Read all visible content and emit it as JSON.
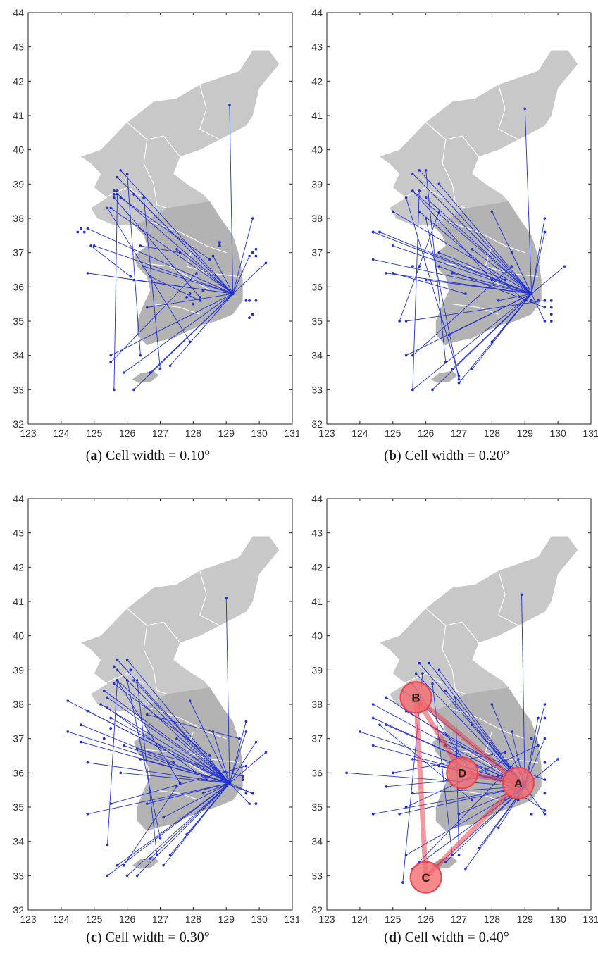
{
  "figure": {
    "panels": [
      {
        "letter": "a",
        "caption_text": " Cell width = 0.10°"
      },
      {
        "letter": "b",
        "caption_text": " Cell width = 0.20°"
      },
      {
        "letter": "c",
        "caption_text": " Cell width = 0.30°"
      },
      {
        "letter": "d",
        "caption_text": " Cell width = 0.40°"
      }
    ]
  },
  "colors": {
    "links": "#1f2fd6",
    "land": "#c8c8c8",
    "land_south": "#b3b3b3",
    "boundary": "#ffffff",
    "hub": "#e8434f",
    "hub_fill": "#f46b6f"
  },
  "chart_data": [
    {
      "type": "scatter",
      "title": "",
      "xlabel": "",
      "ylabel": "",
      "xlim": [
        123,
        131
      ],
      "ylim": [
        32,
        44
      ],
      "x_ticks": [
        123,
        124,
        125,
        126,
        127,
        128,
        129,
        130,
        131
      ],
      "y_ticks": [
        32,
        33,
        34,
        35,
        36,
        37,
        38,
        39,
        40,
        41,
        42,
        43,
        44
      ],
      "grid": false,
      "hub": [
        129.2,
        35.8
      ],
      "hub_links_from": [
        [
          129.1,
          41.3
        ],
        [
          125.8,
          39.4
        ],
        [
          125.7,
          39.2
        ],
        [
          125.6,
          38.8
        ],
        [
          126.2,
          38.7
        ],
        [
          125.5,
          38.3
        ],
        [
          124.8,
          37.7
        ],
        [
          125.0,
          37.2
        ],
        [
          124.8,
          36.4
        ],
        [
          126.2,
          36.2
        ],
        [
          126.5,
          36.6
        ],
        [
          127.5,
          37.1
        ],
        [
          128.6,
          36.9
        ],
        [
          130.2,
          36.7
        ],
        [
          129.8,
          38.0
        ],
        [
          129.7,
          36.9
        ],
        [
          125.5,
          34.0
        ],
        [
          125.9,
          33.5
        ],
        [
          126.2,
          33.0
        ],
        [
          126.7,
          33.5
        ],
        [
          127.3,
          33.7
        ],
        [
          126.6,
          35.4
        ]
      ],
      "other_links": [
        [
          [
            125.6,
            33.0
          ],
          [
            125.7,
            38.7
          ]
        ],
        [
          [
            125.4,
            38.3
          ],
          [
            127.9,
            34.4
          ]
        ],
        [
          [
            126.5,
            38.6
          ],
          [
            127.0,
            33.6
          ]
        ],
        [
          [
            125.6,
            38.6
          ],
          [
            128.2,
            35.7
          ]
        ],
        [
          [
            124.9,
            37.2
          ],
          [
            126.1,
            36.3
          ]
        ],
        [
          [
            126.0,
            39.3
          ],
          [
            126.4,
            34.0
          ]
        ],
        [
          [
            125.5,
            33.8
          ],
          [
            128.1,
            36.4
          ]
        ],
        [
          [
            125.8,
            38.6
          ],
          [
            128.5,
            36.8
          ]
        ],
        [
          [
            126.4,
            37.2
          ],
          [
            127.6,
            37.0
          ]
        ],
        [
          [
            126.7,
            36.3
          ],
          [
            128.2,
            35.6
          ]
        ]
      ],
      "points": [
        [
          124.5,
          37.6
        ],
        [
          124.6,
          37.7
        ],
        [
          124.7,
          37.6
        ],
        [
          125.6,
          38.8
        ],
        [
          125.7,
          38.8
        ],
        [
          125.6,
          38.7
        ],
        [
          128.8,
          37.3
        ],
        [
          128.8,
          37.2
        ],
        [
          129.8,
          37.0
        ],
        [
          129.9,
          37.1
        ],
        [
          129.9,
          36.9
        ],
        [
          129.6,
          35.6
        ],
        [
          129.7,
          35.6
        ],
        [
          129.8,
          35.2
        ],
        [
          129.7,
          35.1
        ],
        [
          129.9,
          35.6
        ],
        [
          128.0,
          35.5
        ],
        [
          127.9,
          35.8
        ],
        [
          128.3,
          35.9
        ],
        [
          127.8,
          35.7
        ]
      ]
    },
    {
      "type": "scatter",
      "title": "",
      "xlabel": "",
      "ylabel": "",
      "xlim": [
        123,
        131
      ],
      "ylim": [
        32,
        44
      ],
      "x_ticks": [
        123,
        124,
        125,
        126,
        127,
        128,
        129,
        130,
        131
      ],
      "y_ticks": [
        32,
        33,
        34,
        35,
        36,
        37,
        38,
        39,
        40,
        41,
        42,
        43,
        44
      ],
      "grid": false,
      "hub": [
        129.2,
        35.8
      ],
      "hub_links_from": [
        [
          129.0,
          41.2
        ],
        [
          125.8,
          39.4
        ],
        [
          125.6,
          39.3
        ],
        [
          125.6,
          38.8
        ],
        [
          126.4,
          39.0
        ],
        [
          126.0,
          38.6
        ],
        [
          125.0,
          38.2
        ],
        [
          124.4,
          37.6
        ],
        [
          124.6,
          37.6
        ],
        [
          125.0,
          37.2
        ],
        [
          124.8,
          36.4
        ],
        [
          124.4,
          36.8
        ],
        [
          126.0,
          36.2
        ],
        [
          126.8,
          36.4
        ],
        [
          127.4,
          37.1
        ],
        [
          128.0,
          38.2
        ],
        [
          128.6,
          37.0
        ],
        [
          129.6,
          38.0
        ],
        [
          129.6,
          37.6
        ],
        [
          130.2,
          36.6
        ],
        [
          125.4,
          34.0
        ],
        [
          125.6,
          33.0
        ],
        [
          126.2,
          33.0
        ],
        [
          126.8,
          33.6
        ],
        [
          127.0,
          33.2
        ],
        [
          127.4,
          33.6
        ],
        [
          128.0,
          34.4
        ],
        [
          126.7,
          34.6
        ],
        [
          128.2,
          35.6
        ],
        [
          129.6,
          35.0
        ]
      ],
      "other_links": [
        [
          [
            125.6,
            33.0
          ],
          [
            125.8,
            38.8
          ]
        ],
        [
          [
            125.2,
            35.0
          ],
          [
            126.4,
            38.2
          ]
        ],
        [
          [
            125.4,
            38.6
          ],
          [
            127.0,
            33.4
          ]
        ],
        [
          [
            125.6,
            38.8
          ],
          [
            128.0,
            36.2
          ]
        ],
        [
          [
            126.0,
            39.4
          ],
          [
            126.6,
            33.8
          ]
        ],
        [
          [
            125.8,
            38.2
          ],
          [
            129.0,
            35.6
          ]
        ],
        [
          [
            126.4,
            37.0
          ],
          [
            128.4,
            36.2
          ]
        ],
        [
          [
            125.0,
            36.4
          ],
          [
            127.2,
            35.8
          ]
        ],
        [
          [
            126.0,
            38.0
          ],
          [
            127.0,
            33.3
          ]
        ],
        [
          [
            125.6,
            34.0
          ],
          [
            128.6,
            36.6
          ]
        ],
        [
          [
            126.4,
            36.6
          ],
          [
            129.6,
            35.4
          ]
        ],
        [
          [
            125.4,
            35.0
          ],
          [
            129.6,
            35.6
          ]
        ]
      ],
      "points": [
        [
          124.4,
          37.6
        ],
        [
          124.6,
          37.6
        ],
        [
          125.6,
          36.6
        ],
        [
          125.8,
          36.6
        ],
        [
          129.6,
          37.6
        ],
        [
          129.8,
          35.6
        ],
        [
          129.8,
          35.4
        ],
        [
          129.8,
          35.2
        ],
        [
          129.8,
          35.0
        ],
        [
          129.6,
          35.6
        ],
        [
          129.2,
          35.6
        ],
        [
          129.4,
          35.6
        ]
      ]
    },
    {
      "type": "scatter",
      "title": "",
      "xlabel": "",
      "ylabel": "",
      "xlim": [
        123,
        131
      ],
      "ylim": [
        32,
        44
      ],
      "x_ticks": [
        123,
        124,
        125,
        126,
        127,
        128,
        129,
        130,
        131
      ],
      "y_ticks": [
        32,
        33,
        34,
        35,
        36,
        37,
        38,
        39,
        40,
        41,
        42,
        43,
        44
      ],
      "grid": false,
      "hub": [
        129.1,
        35.7
      ],
      "hub_links_from": [
        [
          129.0,
          41.1
        ],
        [
          125.7,
          39.3
        ],
        [
          126.0,
          39.3
        ],
        [
          125.7,
          39.0
        ],
        [
          125.7,
          38.7
        ],
        [
          126.2,
          38.7
        ],
        [
          125.3,
          38.4
        ],
        [
          125.4,
          38.2
        ],
        [
          125.2,
          38.0
        ],
        [
          124.2,
          38.1
        ],
        [
          124.8,
          37.8
        ],
        [
          125.5,
          37.6
        ],
        [
          124.2,
          37.2
        ],
        [
          124.6,
          36.9
        ],
        [
          124.8,
          36.3
        ],
        [
          125.8,
          36.0
        ],
        [
          126.4,
          36.4
        ],
        [
          127.5,
          37.0
        ],
        [
          127.9,
          38.1
        ],
        [
          128.6,
          37.2
        ],
        [
          129.6,
          37.5
        ],
        [
          129.6,
          37.2
        ],
        [
          129.9,
          36.9
        ],
        [
          130.2,
          36.6
        ],
        [
          129.7,
          35.1
        ],
        [
          129.8,
          35.4
        ],
        [
          124.8,
          34.8
        ],
        [
          125.4,
          33.0
        ],
        [
          125.7,
          33.3
        ],
        [
          126.0,
          33.0
        ],
        [
          126.3,
          33.0
        ],
        [
          126.7,
          33.5
        ],
        [
          127.1,
          33.3
        ],
        [
          127.3,
          33.6
        ],
        [
          127.8,
          34.2
        ],
        [
          127.1,
          34.7
        ],
        [
          128.3,
          35.4
        ],
        [
          126.6,
          35.1
        ]
      ],
      "other_links": [
        [
          [
            125.4,
            33.9
          ],
          [
            125.7,
            38.7
          ]
        ],
        [
          [
            125.7,
            38.7
          ],
          [
            127.6,
            35.7
          ]
        ],
        [
          [
            125.6,
            38.6
          ],
          [
            128.5,
            36.5
          ]
        ],
        [
          [
            126.0,
            38.7
          ],
          [
            127.0,
            34.1
          ]
        ],
        [
          [
            125.4,
            37.9
          ],
          [
            128.4,
            35.8
          ]
        ],
        [
          [
            126.3,
            38.7
          ],
          [
            126.9,
            33.6
          ]
        ],
        [
          [
            125.9,
            33.3
          ],
          [
            127.5,
            35.6
          ]
        ],
        [
          [
            124.6,
            37.4
          ],
          [
            127.4,
            36.3
          ]
        ],
        [
          [
            126.3,
            36.7
          ],
          [
            129.5,
            35.9
          ]
        ],
        [
          [
            125.5,
            35.1
          ],
          [
            129.6,
            36.2
          ]
        ],
        [
          [
            125.9,
            36.8
          ],
          [
            129.8,
            35.4
          ]
        ],
        [
          [
            126.6,
            37.7
          ],
          [
            129.4,
            37.0
          ]
        ]
      ],
      "points": [
        [
          125.6,
          39.1
        ],
        [
          126.1,
          39.0
        ],
        [
          125.5,
          37.3
        ],
        [
          125.3,
          37.0
        ],
        [
          129.5,
          35.8
        ],
        [
          129.8,
          35.4
        ],
        [
          129.9,
          35.1
        ],
        [
          129.6,
          35.4
        ]
      ]
    },
    {
      "type": "scatter",
      "title": "",
      "xlabel": "",
      "ylabel": "",
      "xlim": [
        123,
        131
      ],
      "ylim": [
        32,
        44
      ],
      "x_ticks": [
        123,
        124,
        125,
        126,
        127,
        128,
        129,
        130,
        131
      ],
      "y_ticks": [
        32,
        33,
        34,
        35,
        36,
        37,
        38,
        39,
        40,
        41,
        42,
        43,
        44
      ],
      "grid": false,
      "hub": [
        129.0,
        35.6
      ],
      "hub_links_from": [
        [
          128.9,
          41.2
        ],
        [
          125.8,
          39.2
        ],
        [
          126.1,
          39.2
        ],
        [
          125.7,
          38.9
        ],
        [
          126.4,
          39.0
        ],
        [
          126.6,
          38.4
        ],
        [
          125.3,
          38.4
        ],
        [
          124.8,
          38.2
        ],
        [
          124.4,
          38.0
        ],
        [
          124.4,
          37.6
        ],
        [
          123.6,
          36.0
        ],
        [
          124.0,
          37.2
        ],
        [
          124.8,
          37.4
        ],
        [
          124.4,
          36.8
        ],
        [
          125.6,
          36.4
        ],
        [
          126.4,
          36.2
        ],
        [
          127.4,
          37.4
        ],
        [
          128.0,
          38.0
        ],
        [
          128.6,
          37.2
        ],
        [
          129.4,
          37.6
        ],
        [
          129.6,
          38.0
        ],
        [
          130.0,
          36.4
        ],
        [
          129.6,
          37.0
        ],
        [
          129.6,
          34.8
        ],
        [
          124.4,
          34.8
        ],
        [
          125.2,
          34.8
        ],
        [
          125.6,
          33.2
        ],
        [
          126.0,
          33.0
        ],
        [
          126.6,
          33.4
        ],
        [
          127.2,
          33.2
        ],
        [
          127.6,
          33.8
        ],
        [
          128.2,
          34.4
        ],
        [
          127.0,
          34.8
        ],
        [
          128.4,
          35.2
        ],
        [
          125.4,
          33.6
        ],
        [
          125.6,
          35.4
        ]
      ],
      "other_links": [
        [
          [
            125.3,
            32.8
          ],
          [
            125.9,
            38.9
          ]
        ],
        [
          [
            125.6,
            38.6
          ],
          [
            127.4,
            36.0
          ]
        ],
        [
          [
            125.4,
            37.8
          ],
          [
            128.6,
            36.0
          ]
        ],
        [
          [
            126.2,
            38.6
          ],
          [
            126.8,
            33.6
          ]
        ],
        [
          [
            125.8,
            33.4
          ],
          [
            128.8,
            36.4
          ]
        ],
        [
          [
            124.6,
            37.4
          ],
          [
            127.4,
            35.2
          ]
        ],
        [
          [
            126.4,
            37.0
          ],
          [
            129.6,
            35.8
          ]
        ],
        [
          [
            125.4,
            35.0
          ],
          [
            129.4,
            36.8
          ]
        ],
        [
          [
            126.6,
            36.8
          ],
          [
            129.6,
            34.9
          ]
        ],
        [
          [
            125.0,
            36.0
          ],
          [
            128.4,
            36.6
          ]
        ],
        [
          [
            126.9,
            38.2
          ],
          [
            127.0,
            33.6
          ]
        ],
        [
          [
            124.8,
            35.6
          ],
          [
            128.2,
            35.9
          ]
        ]
      ],
      "points": [
        [
          129.6,
          37.6
        ],
        [
          129.2,
          37.0
        ],
        [
          129.6,
          36.3
        ],
        [
          129.6,
          35.4
        ],
        [
          128.8,
          35.2
        ],
        [
          129.2,
          34.8
        ]
      ],
      "hub_regions": [
        {
          "label": "A",
          "x": 128.8,
          "y": 35.7
        },
        {
          "label": "B",
          "x": 125.7,
          "y": 38.2
        },
        {
          "label": "C",
          "x": 126.0,
          "y": 32.95
        },
        {
          "label": "D",
          "x": 127.1,
          "y": 36.0
        }
      ],
      "region_links": [
        [
          "A",
          "B"
        ],
        [
          "A",
          "C"
        ],
        [
          "A",
          "D"
        ],
        [
          "B",
          "C"
        ],
        [
          "B",
          "D"
        ]
      ]
    }
  ]
}
